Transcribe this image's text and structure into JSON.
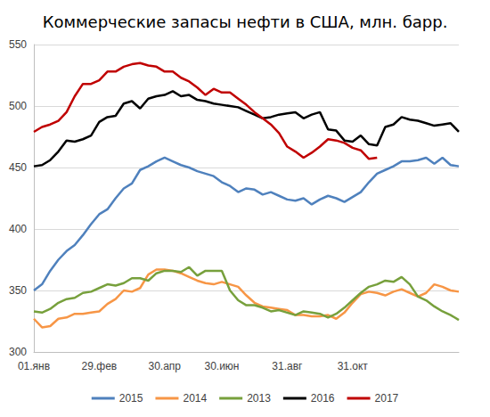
{
  "chart_data": {
    "type": "line",
    "title": "Коммерческие запасы нефти в США, млн. барр.",
    "categories": [
      "01.янв",
      null,
      null,
      null,
      null,
      null,
      null,
      null,
      "29.фев",
      null,
      null,
      null,
      null,
      null,
      null,
      null,
      "30.апр",
      null,
      null,
      null,
      null,
      null,
      null,
      "30.июн",
      null,
      null,
      null,
      null,
      null,
      null,
      null,
      "31.авг",
      null,
      null,
      null,
      null,
      null,
      null,
      null,
      "31.окт",
      null,
      null,
      null,
      null,
      null,
      null,
      null,
      null,
      null,
      null,
      null,
      null,
      null
    ],
    "series": [
      {
        "name": "2015",
        "color": "#4f81bd",
        "values": [
          350,
          355,
          366,
          375,
          382,
          387,
          395,
          404,
          412,
          416,
          425,
          433,
          437,
          448,
          451,
          455,
          458,
          455,
          452,
          450,
          447,
          445,
          443,
          438,
          435,
          430,
          433,
          432,
          428,
          430,
          427,
          424,
          423,
          425,
          420,
          424,
          427,
          425,
          422,
          426,
          430,
          438,
          445,
          448,
          451,
          455,
          455,
          456,
          458,
          453,
          458,
          452,
          451
        ]
      },
      {
        "name": "2014",
        "color": "#f79646",
        "values": [
          327,
          320,
          321,
          327,
          328,
          331,
          331,
          332,
          333,
          339,
          343,
          350,
          349,
          352,
          363,
          367,
          367,
          366,
          364,
          361,
          358,
          356,
          355,
          357,
          355,
          353,
          346,
          340,
          337,
          336,
          335,
          334,
          330,
          330,
          329,
          329,
          330,
          327,
          332,
          340,
          347,
          349,
          348,
          346,
          349,
          351,
          348,
          345,
          348,
          355,
          353,
          350,
          349
        ]
      },
      {
        "name": "2013",
        "color": "#77a03c",
        "values": [
          333,
          332,
          335,
          340,
          343,
          344,
          348,
          349,
          352,
          355,
          354,
          356,
          360,
          360,
          358,
          364,
          366,
          366,
          365,
          369,
          362,
          366,
          366,
          366,
          350,
          342,
          338,
          338,
          336,
          333,
          334,
          332,
          330,
          333,
          332,
          331,
          328,
          331,
          336,
          342,
          348,
          353,
          355,
          358,
          357,
          361,
          355,
          345,
          342,
          337,
          333,
          330,
          326
        ]
      },
      {
        "name": "2016",
        "color": "#000000",
        "values": [
          451,
          452,
          456,
          463,
          472,
          471,
          473,
          476,
          487,
          491,
          492,
          502,
          504,
          498,
          506,
          508,
          509,
          512,
          508,
          509,
          505,
          504,
          502,
          501,
          500,
          499,
          496,
          493,
          490,
          491,
          493,
          494,
          495,
          490,
          493,
          495,
          481,
          480,
          472,
          471,
          476,
          469,
          468,
          483,
          485,
          491,
          489,
          488,
          486,
          484,
          485,
          486,
          479
        ]
      },
      {
        "name": "2017",
        "color": "#c00000",
        "values": [
          479,
          483,
          485,
          488,
          495,
          508,
          518,
          518,
          521,
          528,
          528,
          532,
          534,
          535,
          533,
          532,
          528,
          528,
          523,
          520,
          515,
          509,
          514,
          511,
          511,
          506,
          501,
          495,
          490,
          485,
          478,
          467,
          463,
          458,
          462,
          467,
          473,
          472,
          470,
          466,
          464,
          457,
          458,
          null,
          null,
          null,
          null,
          null,
          null,
          null,
          null,
          null,
          null
        ]
      }
    ],
    "ylim": [
      300,
      550
    ],
    "yticks": [
      300,
      350,
      400,
      450,
      500,
      550
    ],
    "grid": true,
    "legend": "bottom"
  }
}
